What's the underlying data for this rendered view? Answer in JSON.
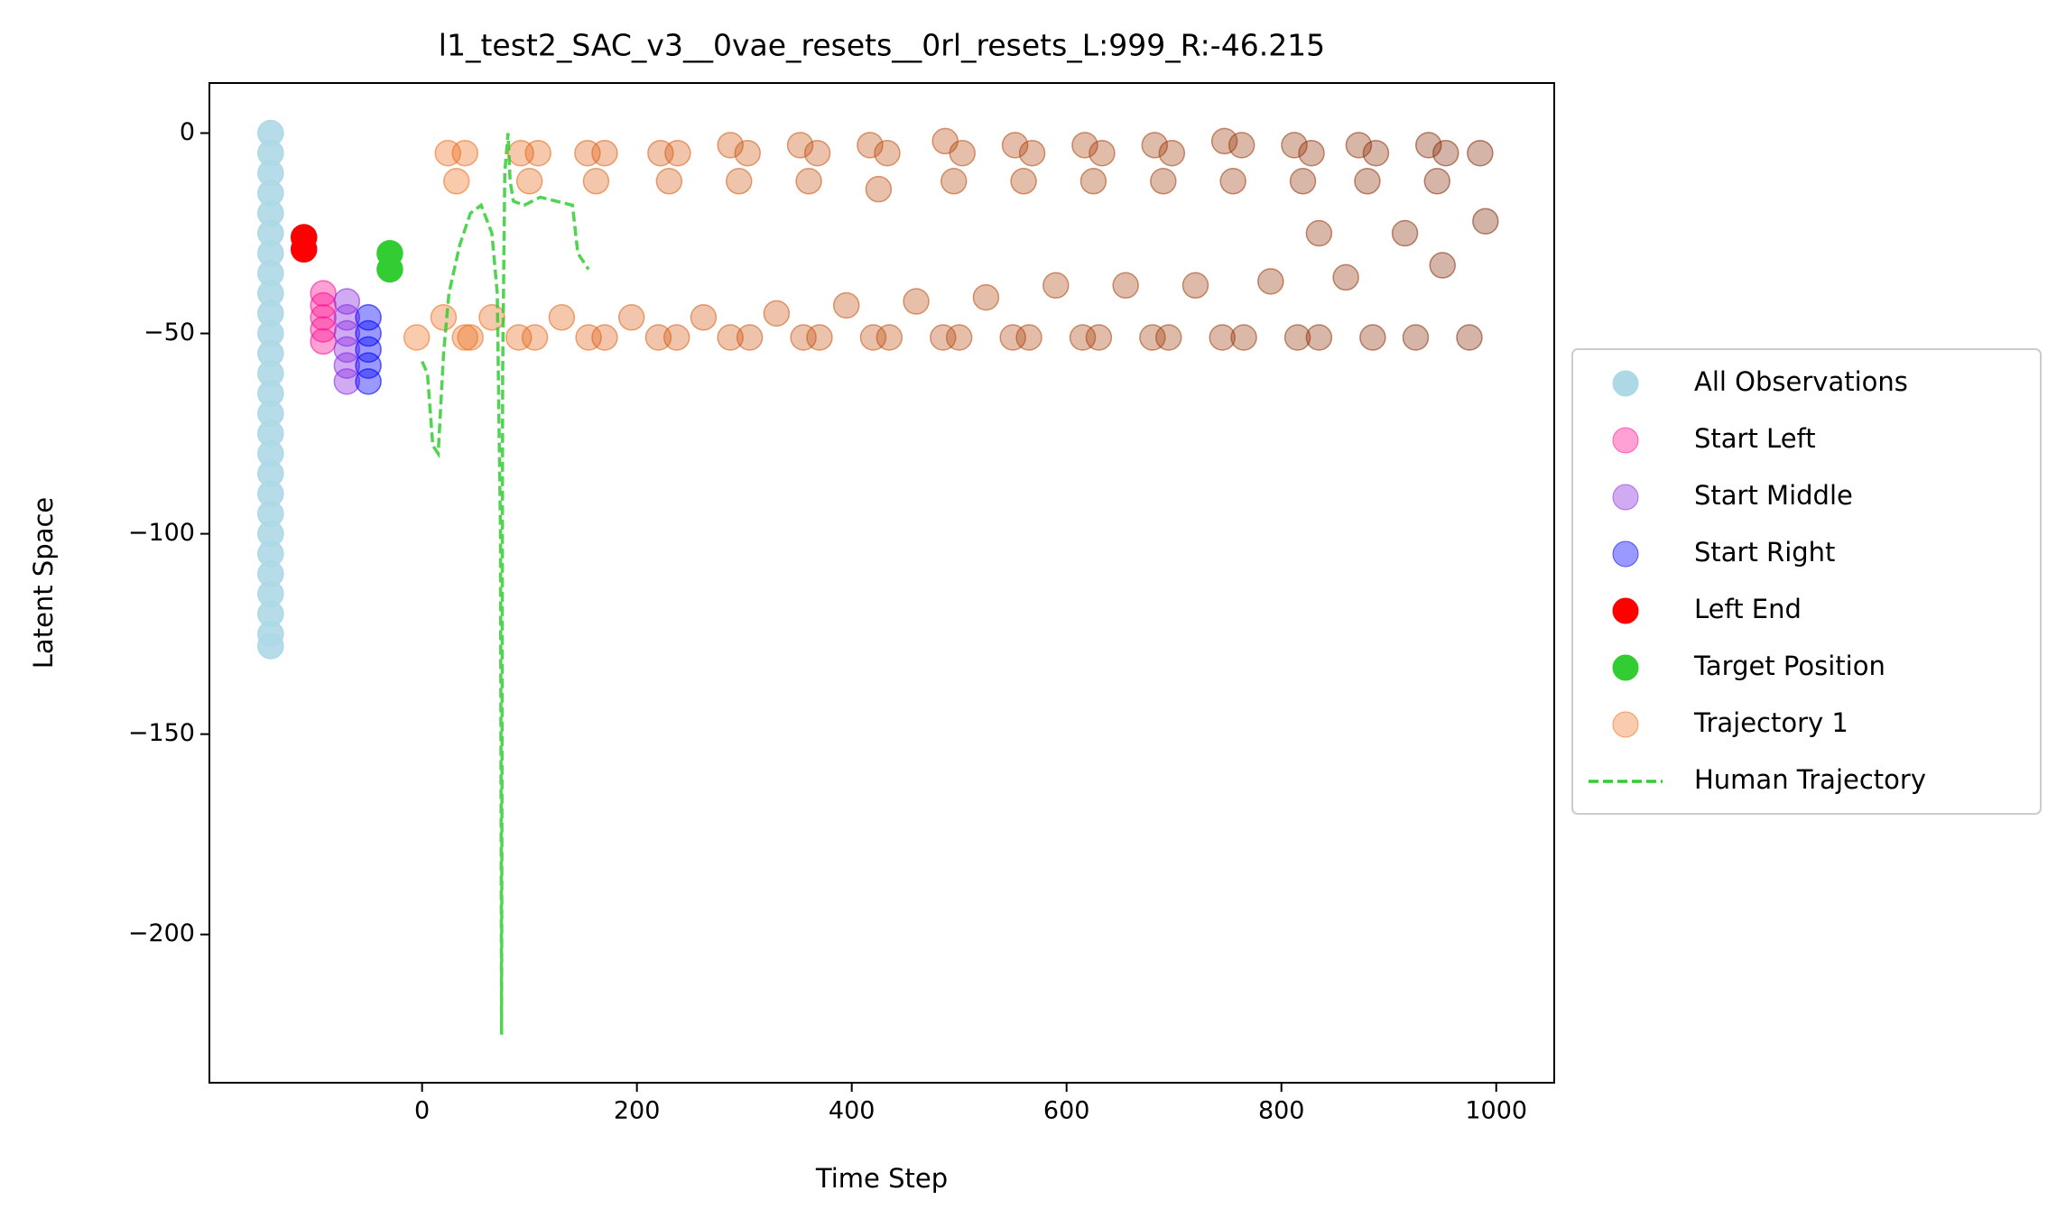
{
  "chart_data": {
    "type": "scatter",
    "title": "l1_test2_SAC_v3__0vae_resets__0rl_resets_L:999_R:-46.215",
    "x_label": "Time Step",
    "y_label": "Latent Space",
    "xlim": [
      -198,
      1054
    ],
    "ylim": [
      -237,
      12.5
    ],
    "xticks": [
      0,
      200,
      400,
      600,
      800,
      1000
    ],
    "yticks": [
      0,
      {
        "value": -50,
        "label": "−50"
      },
      {
        "value": -100,
        "label": "−100"
      },
      {
        "value": -150,
        "label": "−150"
      },
      {
        "value": -200,
        "label": "−200"
      }
    ],
    "legend": "outside right",
    "series": [
      {
        "name": "All Observations",
        "type": "scatter",
        "color": "#add8e6",
        "alpha": 0.9,
        "x": [
          -141,
          -141,
          -141,
          -141,
          -141,
          -141,
          -141,
          -141,
          -141,
          -141,
          -141,
          -141,
          -141,
          -141,
          -141,
          -141,
          -141,
          -141,
          -141,
          -141,
          -141,
          -141,
          -141,
          -141,
          -141,
          -141,
          -141
        ],
        "values": [
          0,
          -5,
          -10,
          -15,
          -20,
          -25,
          -30,
          -35,
          -40,
          -45,
          -50,
          -55,
          -60,
          -65,
          -70,
          -75,
          -80,
          -85,
          -90,
          -95,
          -100,
          -105,
          -110,
          -115,
          -120,
          -125,
          -128
        ]
      },
      {
        "name": "Start Left",
        "type": "scatter",
        "color": "#ff1493",
        "alpha": 0.4,
        "x": [
          -92,
          -92,
          -92,
          -92,
          -92
        ],
        "values": [
          -40,
          -43,
          -46,
          -49,
          -52
        ]
      },
      {
        "name": "Start Middle",
        "type": "scatter",
        "color": "#8a2be2",
        "alpha": 0.4,
        "x": [
          -70,
          -70,
          -70,
          -70,
          -70,
          -70
        ],
        "values": [
          -42,
          -46,
          -50,
          -54,
          -58,
          -62
        ]
      },
      {
        "name": "Start Right",
        "type": "scatter",
        "color": "#0000ff",
        "alpha": 0.4,
        "x": [
          -50,
          -50,
          -50,
          -50,
          -50
        ],
        "values": [
          -46,
          -50,
          -54,
          -58,
          -62
        ]
      },
      {
        "name": "Left End",
        "type": "scatter",
        "color": "#ff0000",
        "alpha": 1,
        "x": [
          -110,
          -110
        ],
        "values": [
          -26,
          -29
        ]
      },
      {
        "name": "Target Position",
        "type": "scatter",
        "color": "#32cd32",
        "alpha": 1,
        "x": [
          -30,
          -30
        ],
        "values": [
          -30,
          -34
        ]
      },
      {
        "name": "Trajectory 1",
        "type": "scatter",
        "cmap": [
          "#f16913",
          "#7f2704"
        ],
        "color": "#f16913",
        "alpha": 0.35,
        "x": [
          -5,
          20,
          45,
          24,
          40,
          32,
          40,
          65,
          90,
          92,
          108,
          100,
          105,
          130,
          155,
          154,
          170,
          162,
          170,
          195,
          220,
          222,
          238,
          230,
          237,
          262,
          287,
          287,
          303,
          295,
          305,
          330,
          355,
          352,
          368,
          360,
          370,
          395,
          420,
          417,
          433,
          425,
          435,
          460,
          485,
          487,
          503,
          495,
          500,
          525,
          550,
          552,
          568,
          560,
          565,
          590,
          615,
          617,
          633,
          625,
          630,
          655,
          680,
          682,
          698,
          690,
          695,
          720,
          745,
          747,
          763,
          755,
          765,
          790,
          815,
          812,
          828,
          820,
          835,
          835,
          860,
          885,
          872,
          888,
          880,
          915,
          925,
          950,
          975,
          937,
          953,
          945,
          985,
          990
        ],
        "values": [
          -51,
          -46,
          -51,
          -5,
          -5,
          -12,
          -51,
          -46,
          -51,
          -5,
          -5,
          -12,
          -51,
          -46,
          -51,
          -5,
          -5,
          -12,
          -51,
          -46,
          -51,
          -5,
          -5,
          -12,
          -51,
          -46,
          -51,
          -3,
          -5,
          -12,
          -51,
          -45,
          -51,
          -3,
          -5,
          -12,
          -51,
          -43,
          -51,
          -3,
          -5,
          -14,
          -51,
          -42,
          -51,
          -2,
          -5,
          -12,
          -51,
          -41,
          -51,
          -3,
          -5,
          -12,
          -51,
          -38,
          -51,
          -3,
          -5,
          -12,
          -51,
          -38,
          -51,
          -3,
          -5,
          -12,
          -51,
          -38,
          -51,
          -2,
          -3,
          -12,
          -51,
          -37,
          -51,
          -3,
          -5,
          -12,
          -25,
          -51,
          -36,
          -51,
          -3,
          -5,
          -12,
          -25,
          -51,
          -33,
          -51,
          -3,
          -5,
          -12,
          -5,
          -22
        ]
      },
      {
        "name": "Human Trajectory",
        "type": "line",
        "color": "#32cd32",
        "alpha": 0.85,
        "x": [
          0,
          5,
          10,
          15,
          20,
          25,
          35,
          45,
          55,
          65,
          70,
          73,
          74,
          75,
          77,
          80,
          82,
          85,
          95,
          110,
          125,
          140,
          145,
          155
        ],
        "values": [
          -57,
          -60,
          -78,
          -80,
          -55,
          -40,
          -28,
          -20,
          -18,
          -25,
          -40,
          -100,
          -225,
          -60,
          -10,
          0,
          -12,
          -17,
          -18,
          -16,
          -17,
          -18,
          -30,
          -34
        ]
      }
    ]
  }
}
